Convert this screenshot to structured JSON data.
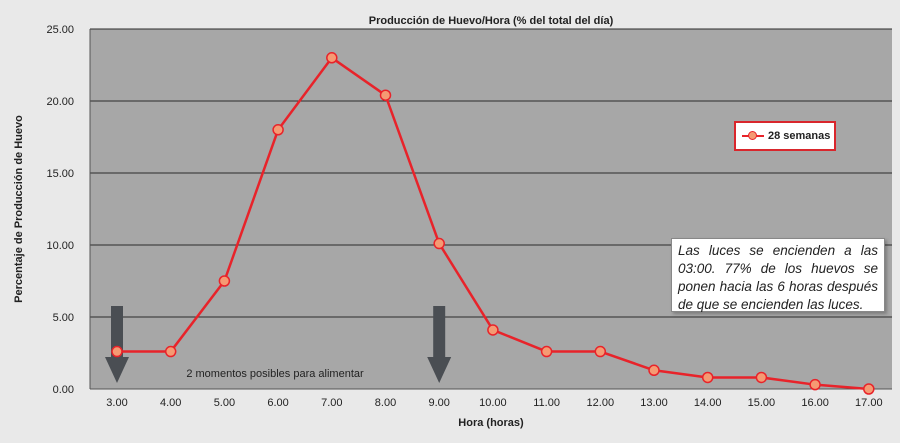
{
  "chart_data": {
    "type": "line",
    "title": "Producción de Huevo/Hora (% del total del día)",
    "xlabel": "Hora (horas)",
    "ylabel": "Percentaje de Producción de Huevo",
    "categories": [
      "3.00",
      "4.00",
      "5.00",
      "6.00",
      "7.00",
      "8.00",
      "9.00",
      "10.00",
      "11.00",
      "12.00",
      "13.00",
      "14.00",
      "15.00",
      "16.00",
      "17.00"
    ],
    "yticks": [
      "0.00",
      "5.00",
      "10.00",
      "15.00",
      "20.00",
      "25.00"
    ],
    "ylim": [
      0,
      25
    ],
    "grid": "horizontal",
    "legend_position": "right",
    "series": [
      {
        "name": "28 semanas",
        "values": [
          2.6,
          2.6,
          7.5,
          18.0,
          23.0,
          20.4,
          10.1,
          4.1,
          2.6,
          2.6,
          1.3,
          0.8,
          0.8,
          0.3,
          0.0
        ],
        "line_color": "#e8232a",
        "marker_color": "#f59a73"
      }
    ],
    "annotations": {
      "feeding_text": "2 momentos posibles para alimentar",
      "feeding_arrows_at": [
        "3.00",
        "9.00"
      ],
      "note": "Las luces se encienden a las 03:00. 77% de los huevos se ponen hacia las 6 horas después de que se encienden las luces."
    }
  },
  "colors": {
    "background": "#e9e9e9",
    "plot_area": "#a7a7a7",
    "grid": "#2b2b2b",
    "arrow": "#4a4e53"
  }
}
